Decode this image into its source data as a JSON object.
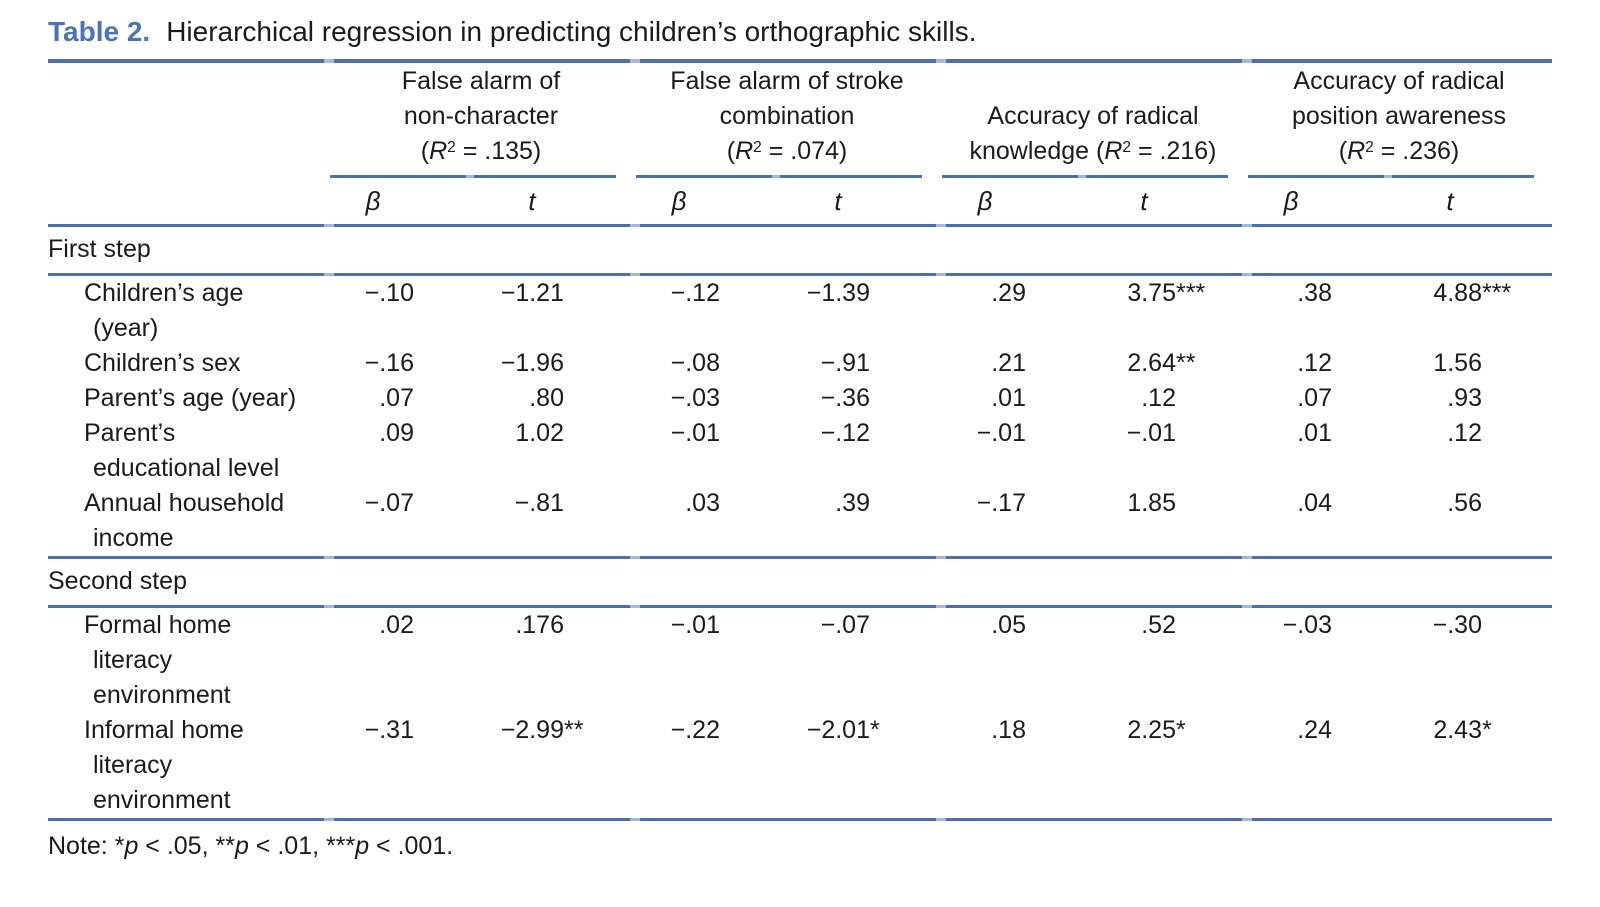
{
  "title": {
    "label": "Table 2.",
    "text": "Hierarchical regression in predicting children’s orthographic skills."
  },
  "colors": {
    "accent_blue": "#4a74b8",
    "rule_blue": "#4a70ad",
    "tick_light_blue": "#a3b8da",
    "text": "#1b1b1b"
  },
  "header": {
    "beta": "β",
    "t": "t",
    "groups": [
      {
        "lines": [
          "False alarm of",
          "non-character"
        ],
        "r2_prefix": "",
        "r2_open": "(",
        "r2_r": "R",
        "r2_sup": "2",
        "r2_rest": " = .135)"
      },
      {
        "lines": [
          "False alarm of stroke",
          "combination"
        ],
        "r2_prefix": "",
        "r2_open": "(",
        "r2_r": "R",
        "r2_sup": "2",
        "r2_rest": " = .074)"
      },
      {
        "lines": [
          "Accuracy of radical"
        ],
        "r2_prefix": "knowledge ",
        "r2_open": "(",
        "r2_r": "R",
        "r2_sup": "2",
        "r2_rest": " = .216)"
      },
      {
        "lines": [
          "Accuracy of radical",
          "position awareness"
        ],
        "r2_prefix": "",
        "r2_open": "(",
        "r2_r": "R",
        "r2_sup": "2",
        "r2_rest": " = .236)"
      }
    ]
  },
  "sections": [
    {
      "label": "First step",
      "rows": [
        {
          "label_lines": [
            "Children’s age",
            "(year)"
          ],
          "cells": [
            {
              "v": "−.10",
              "s": ""
            },
            {
              "v": "−1.21",
              "s": ""
            },
            {
              "v": "−.12",
              "s": ""
            },
            {
              "v": "−1.39",
              "s": ""
            },
            {
              "v": ".29",
              "s": ""
            },
            {
              "v": "3.75",
              "s": "***"
            },
            {
              "v": ".38",
              "s": ""
            },
            {
              "v": "4.88",
              "s": "***"
            }
          ]
        },
        {
          "label_lines": [
            "Children’s sex"
          ],
          "cells": [
            {
              "v": "−.16",
              "s": ""
            },
            {
              "v": "−1.96",
              "s": ""
            },
            {
              "v": "−.08",
              "s": ""
            },
            {
              "v": "−.91",
              "s": ""
            },
            {
              "v": ".21",
              "s": ""
            },
            {
              "v": "2.64",
              "s": "**"
            },
            {
              "v": ".12",
              "s": ""
            },
            {
              "v": "1.56",
              "s": ""
            }
          ]
        },
        {
          "label_lines": [
            "Parent’s age (year)"
          ],
          "cells": [
            {
              "v": ".07",
              "s": ""
            },
            {
              "v": ".80",
              "s": ""
            },
            {
              "v": "−.03",
              "s": ""
            },
            {
              "v": "−.36",
              "s": ""
            },
            {
              "v": ".01",
              "s": ""
            },
            {
              "v": ".12",
              "s": ""
            },
            {
              "v": ".07",
              "s": ""
            },
            {
              "v": ".93",
              "s": ""
            }
          ]
        },
        {
          "label_lines": [
            "Parent’s",
            "educational level"
          ],
          "cells": [
            {
              "v": ".09",
              "s": ""
            },
            {
              "v": "1.02",
              "s": ""
            },
            {
              "v": "−.01",
              "s": ""
            },
            {
              "v": "−.12",
              "s": ""
            },
            {
              "v": "−.01",
              "s": ""
            },
            {
              "v": "−.01",
              "s": ""
            },
            {
              "v": ".01",
              "s": ""
            },
            {
              "v": ".12",
              "s": ""
            }
          ]
        },
        {
          "label_lines": [
            "Annual household",
            "income"
          ],
          "cells": [
            {
              "v": "−.07",
              "s": ""
            },
            {
              "v": "−.81",
              "s": ""
            },
            {
              "v": ".03",
              "s": ""
            },
            {
              "v": ".39",
              "s": ""
            },
            {
              "v": "−.17",
              "s": ""
            },
            {
              "v": "1.85",
              "s": ""
            },
            {
              "v": ".04",
              "s": ""
            },
            {
              "v": ".56",
              "s": ""
            }
          ]
        }
      ]
    },
    {
      "label": "Second step",
      "rows": [
        {
          "label_lines": [
            "Formal home",
            "literacy",
            "environment"
          ],
          "cells": [
            {
              "v": ".02",
              "s": ""
            },
            {
              "v": ".176",
              "s": ""
            },
            {
              "v": "−.01",
              "s": ""
            },
            {
              "v": "−.07",
              "s": ""
            },
            {
              "v": ".05",
              "s": ""
            },
            {
              "v": ".52",
              "s": ""
            },
            {
              "v": "−.03",
              "s": ""
            },
            {
              "v": "−.30",
              "s": ""
            }
          ]
        },
        {
          "label_lines": [
            "Informal home",
            "literacy",
            "environment"
          ],
          "cells": [
            {
              "v": "−.31",
              "s": ""
            },
            {
              "v": "−2.99",
              "s": "**"
            },
            {
              "v": "−.22",
              "s": ""
            },
            {
              "v": "−2.01",
              "s": "*"
            },
            {
              "v": ".18",
              "s": ""
            },
            {
              "v": "2.25",
              "s": "*"
            },
            {
              "v": ".24",
              "s": ""
            },
            {
              "v": "2.43",
              "s": "*"
            }
          ]
        }
      ]
    }
  ],
  "note": {
    "parts": [
      "Note: *",
      "p",
      " < .05, **",
      "p",
      " < .01, ***",
      "p",
      " < .001."
    ]
  }
}
